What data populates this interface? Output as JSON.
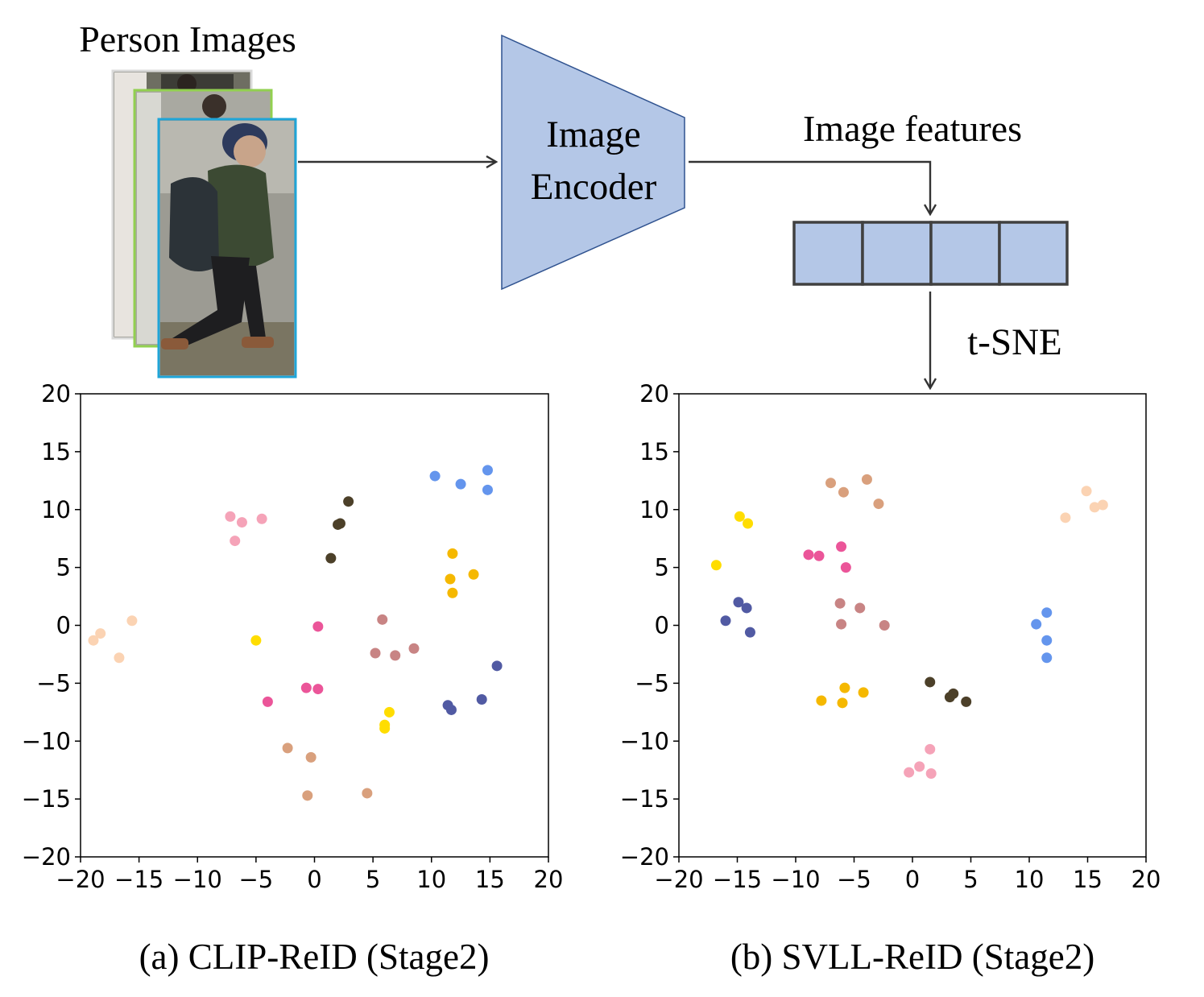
{
  "diagram": {
    "input_label": "Person Images",
    "encoder_label_line1": "Image",
    "encoder_label_line2": "Encoder",
    "features_label": "Image features",
    "tsne_label": "t-SNE",
    "colors": {
      "encoder_fill": "#b4c7e7",
      "encoder_stroke": "#2f528f",
      "feature_fill": "#b4c7e7",
      "feature_stroke": "#404040",
      "arrow": "#333333",
      "photo_frame_back": "#d9d9d9",
      "photo_frame_mid": "#92d050",
      "photo_frame_front": "#1fa5d8"
    }
  },
  "chart_data": [
    {
      "type": "scatter",
      "caption": "(a) CLIP-ReID (Stage2)",
      "xlim": [
        -20,
        20
      ],
      "ylim": [
        -20,
        20
      ],
      "xticks": [
        -20,
        -15,
        -10,
        -5,
        0,
        5,
        10,
        15,
        20
      ],
      "yticks": [
        20,
        15,
        10,
        5,
        0,
        -5,
        -10,
        -15,
        -20
      ],
      "grid": false,
      "series": [
        {
          "color": "#f5a3b8",
          "points": [
            [
              -7.2,
              9.4
            ],
            [
              -6.2,
              8.9
            ],
            [
              -4.5,
              9.2
            ],
            [
              -6.8,
              7.3
            ]
          ]
        },
        {
          "color": "#fbd3b3",
          "points": [
            [
              -18.9,
              -1.3
            ],
            [
              -18.3,
              -0.7
            ],
            [
              -16.7,
              -2.8
            ],
            [
              -15.6,
              0.4
            ]
          ]
        },
        {
          "color": "#4c4029",
          "points": [
            [
              2.0,
              8.7
            ],
            [
              2.2,
              8.8
            ],
            [
              2.9,
              10.7
            ],
            [
              1.4,
              5.8
            ]
          ]
        },
        {
          "color": "#6495ed",
          "points": [
            [
              10.3,
              12.9
            ],
            [
              12.5,
              12.2
            ],
            [
              14.8,
              13.4
            ],
            [
              14.8,
              11.7
            ]
          ]
        },
        {
          "color": "#f5b800",
          "points": [
            [
              11.8,
              6.2
            ],
            [
              11.6,
              4.0
            ],
            [
              13.6,
              4.4
            ],
            [
              11.8,
              2.8
            ]
          ]
        },
        {
          "color": "#ffdd00",
          "points": [
            [
              -5.0,
              -1.3
            ],
            [
              6.4,
              -7.5
            ],
            [
              6.0,
              -8.6
            ],
            [
              6.0,
              -8.9
            ]
          ]
        },
        {
          "color": "#eb5599",
          "points": [
            [
              0.3,
              -0.1
            ],
            [
              -0.7,
              -5.4
            ],
            [
              0.3,
              -5.5
            ],
            [
              -4.0,
              -6.6
            ]
          ]
        },
        {
          "color": "#c88484",
          "points": [
            [
              5.8,
              0.5
            ],
            [
              5.2,
              -2.4
            ],
            [
              6.9,
              -2.6
            ],
            [
              8.5,
              -2.0
            ]
          ]
        },
        {
          "color": "#d9a07d",
          "points": [
            [
              -2.3,
              -10.6
            ],
            [
              -0.3,
              -11.4
            ],
            [
              -0.6,
              -14.7
            ],
            [
              4.5,
              -14.5
            ]
          ]
        },
        {
          "color": "#515aa3",
          "points": [
            [
              11.4,
              -6.9
            ],
            [
              11.7,
              -7.3
            ],
            [
              14.3,
              -6.4
            ],
            [
              15.6,
              -3.5
            ]
          ]
        }
      ]
    },
    {
      "type": "scatter",
      "caption": "(b) SVLL-ReID (Stage2)",
      "xlim": [
        -20,
        20
      ],
      "ylim": [
        -20,
        20
      ],
      "xticks": [
        -20,
        -15,
        -10,
        -5,
        0,
        5,
        10,
        15,
        20
      ],
      "yticks": [
        20,
        15,
        10,
        5,
        0,
        -5,
        -10,
        -15,
        -20
      ],
      "grid": false,
      "series": [
        {
          "color": "#d9a07d",
          "points": [
            [
              -7.0,
              12.3
            ],
            [
              -5.9,
              11.5
            ],
            [
              -3.9,
              12.6
            ],
            [
              -2.9,
              10.5
            ]
          ]
        },
        {
          "color": "#fbd3b3",
          "points": [
            [
              14.9,
              11.6
            ],
            [
              15.6,
              10.2
            ],
            [
              16.3,
              10.4
            ],
            [
              13.1,
              9.3
            ]
          ]
        },
        {
          "color": "#ffdd00",
          "points": [
            [
              -14.8,
              9.4
            ],
            [
              -14.1,
              8.8
            ],
            [
              -16.8,
              5.2
            ]
          ]
        },
        {
          "color": "#eb5599",
          "points": [
            [
              -8.9,
              6.1
            ],
            [
              -8.0,
              6.0
            ],
            [
              -6.1,
              6.8
            ],
            [
              -5.7,
              5.0
            ]
          ]
        },
        {
          "color": "#515aa3",
          "points": [
            [
              -14.9,
              2.0
            ],
            [
              -14.2,
              1.5
            ],
            [
              -16.0,
              0.4
            ],
            [
              -13.9,
              -0.6
            ]
          ]
        },
        {
          "color": "#c88484",
          "points": [
            [
              -6.2,
              1.9
            ],
            [
              -4.5,
              1.5
            ],
            [
              -6.1,
              0.1
            ],
            [
              -2.4,
              0.0
            ]
          ]
        },
        {
          "color": "#6495ed",
          "points": [
            [
              11.5,
              1.1
            ],
            [
              10.6,
              0.1
            ],
            [
              11.5,
              -1.3
            ],
            [
              11.5,
              -2.8
            ]
          ]
        },
        {
          "color": "#f5b800",
          "points": [
            [
              -5.8,
              -5.4
            ],
            [
              -4.2,
              -5.8
            ],
            [
              -7.8,
              -6.5
            ],
            [
              -6.0,
              -6.7
            ]
          ]
        },
        {
          "color": "#4c4029",
          "points": [
            [
              1.5,
              -4.9
            ],
            [
              3.2,
              -6.2
            ],
            [
              3.5,
              -5.9
            ],
            [
              4.6,
              -6.6
            ]
          ]
        },
        {
          "color": "#f5a3b8",
          "points": [
            [
              1.5,
              -10.7
            ],
            [
              0.6,
              -12.2
            ],
            [
              -0.3,
              -12.7
            ],
            [
              1.6,
              -12.8
            ]
          ]
        }
      ]
    }
  ]
}
